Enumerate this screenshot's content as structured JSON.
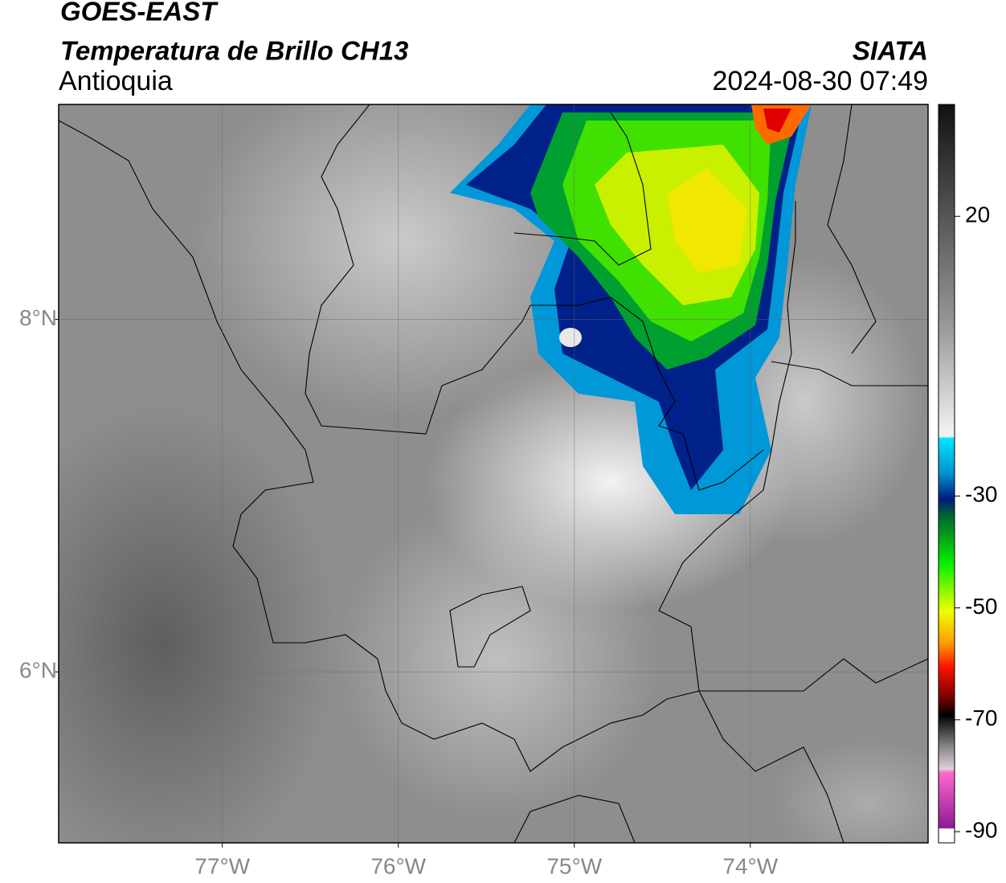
{
  "map": {
    "satellite": "GOES-EAST",
    "title": "Temperatura de Brillo CH13",
    "source": "SIATA",
    "region": "Antioquia",
    "datetime": "2024-08-30 07:49",
    "xlim": [
      -77.93,
      -72.99
    ],
    "ylim": [
      5.03,
      9.22
    ],
    "xticks": [
      {
        "value": -77,
        "label": "77°W"
      },
      {
        "value": -76,
        "label": "76°W"
      },
      {
        "value": -75,
        "label": "75°W"
      },
      {
        "value": -74,
        "label": "74°W"
      }
    ],
    "yticks": [
      {
        "value": 6,
        "label": "6°N"
      },
      {
        "value": 8,
        "label": "8°N"
      }
    ],
    "grid": true,
    "colorbar": {
      "lim": [
        -92,
        40
      ],
      "ticks": [
        20,
        -30,
        -50,
        -70,
        -90
      ]
    }
  }
}
